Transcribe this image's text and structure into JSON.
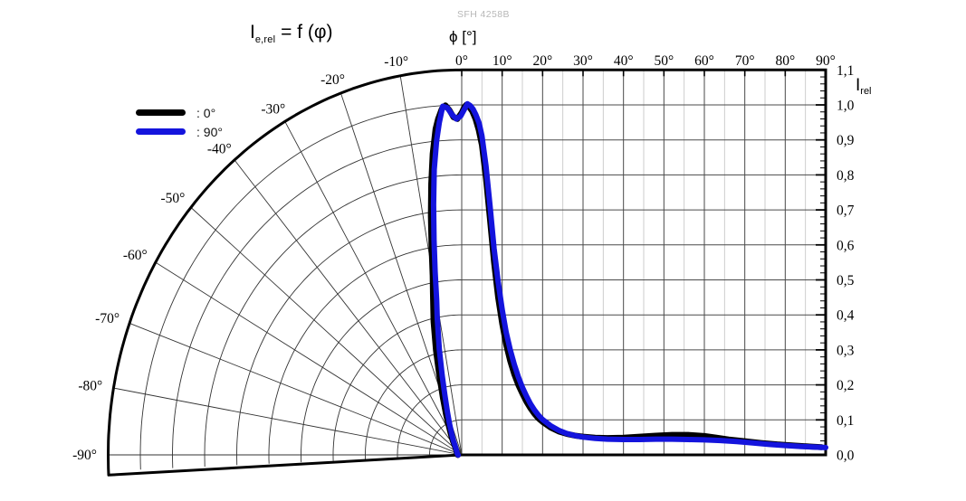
{
  "meta": {
    "part_label": "SFH 4258B"
  },
  "title": {
    "symbol": "I",
    "symbol_sub": "e,rel",
    "rest": " = f (φ)"
  },
  "legend": [
    {
      "label": ": 0°",
      "color": "#000000"
    },
    {
      "label": ": 90°",
      "color": "#1414dd"
    }
  ],
  "chart_data": {
    "type": "line",
    "title": "I_e,rel = f (φ)",
    "subtitle": "SFH 4258B",
    "layout_hint": "left half: polar sector 0°..-93°; right half: cartesian 0°..90°",
    "x_axis": {
      "label": "ϕ [°]",
      "tick_values": [
        0,
        10,
        20,
        30,
        40,
        50,
        60,
        70,
        80,
        90
      ],
      "tick_labels": [
        "0°",
        "10°",
        "20°",
        "30°",
        "40°",
        "50°",
        "60°",
        "70°",
        "80°",
        "90°"
      ],
      "minor_step_deg": 5
    },
    "polar_axis": {
      "tick_values": [
        10,
        20,
        30,
        40,
        50,
        60,
        70,
        80,
        90
      ],
      "tick_labels": [
        "-10°",
        "-20°",
        "-30°",
        "-40°",
        "-50°",
        "-60°",
        "-70°",
        "-80°",
        "-90°"
      ],
      "sector_end_deg": -93.5
    },
    "y_axis": {
      "label": "I",
      "label_sub": "rel",
      "tick_step": 0.1,
      "minor_tick_step": 0.02,
      "tick_labels_bottom_to_top": [
        "0,0",
        "0,1",
        "0,2",
        "0,3",
        "0,4",
        "0,5",
        "0,6",
        "0,7",
        "0,8",
        "0,9",
        "1,0",
        "1,1"
      ],
      "ylim": [
        0.0,
        1.1
      ]
    },
    "series": [
      {
        "name": "0°",
        "color": "#000000",
        "stroke_width": 6.5,
        "points": [
          [
            -93,
            0.012
          ],
          [
            -88,
            0.013
          ],
          [
            -80,
            0.014
          ],
          [
            -72,
            0.016
          ],
          [
            -64,
            0.018
          ],
          [
            -56,
            0.02
          ],
          [
            -50,
            0.023
          ],
          [
            -45,
            0.027
          ],
          [
            -41,
            0.032
          ],
          [
            -38,
            0.038
          ],
          [
            -35,
            0.047
          ],
          [
            -32,
            0.058
          ],
          [
            -29,
            0.072
          ],
          [
            -26,
            0.092
          ],
          [
            -23,
            0.125
          ],
          [
            -20,
            0.17
          ],
          [
            -17,
            0.24
          ],
          [
            -15,
            0.31
          ],
          [
            -13,
            0.39
          ],
          [
            -11,
            0.47
          ],
          [
            -10,
            0.52
          ],
          [
            -9,
            0.6
          ],
          [
            -8,
            0.69
          ],
          [
            -7,
            0.78
          ],
          [
            -6,
            0.865
          ],
          [
            -5,
            0.935
          ],
          [
            -4.4,
            0.962
          ],
          [
            -3.6,
            0.99
          ],
          [
            -2.9,
            1.0
          ],
          [
            -2.2,
            0.985
          ],
          [
            -1.5,
            0.965
          ],
          [
            -0.8,
            0.96
          ],
          [
            0,
            0.978
          ],
          [
            0.6,
            0.993
          ],
          [
            1.1,
            1.0
          ],
          [
            1.8,
            0.995
          ],
          [
            2.6,
            0.982
          ],
          [
            3.4,
            0.96
          ],
          [
            4.2,
            0.928
          ],
          [
            5,
            0.885
          ],
          [
            6,
            0.79
          ],
          [
            7,
            0.67
          ],
          [
            8,
            0.55
          ],
          [
            9,
            0.45
          ],
          [
            10,
            0.375
          ],
          [
            11,
            0.315
          ],
          [
            12,
            0.268
          ],
          [
            13,
            0.23
          ],
          [
            14,
            0.2
          ],
          [
            15,
            0.175
          ],
          [
            16,
            0.152
          ],
          [
            17,
            0.133
          ],
          [
            18,
            0.117
          ],
          [
            19,
            0.104
          ],
          [
            20,
            0.094
          ],
          [
            22,
            0.078
          ],
          [
            24,
            0.067
          ],
          [
            26,
            0.06
          ],
          [
            28,
            0.055
          ],
          [
            30,
            0.052
          ],
          [
            33,
            0.049
          ],
          [
            36,
            0.048
          ],
          [
            40,
            0.049
          ],
          [
            44,
            0.052
          ],
          [
            48,
            0.055
          ],
          [
            52,
            0.057
          ],
          [
            56,
            0.057
          ],
          [
            60,
            0.054
          ],
          [
            63,
            0.049
          ],
          [
            66,
            0.044
          ],
          [
            70,
            0.039
          ],
          [
            74,
            0.034
          ],
          [
            78,
            0.03
          ],
          [
            82,
            0.027
          ],
          [
            86,
            0.024
          ],
          [
            89,
            0.022
          ]
        ]
      },
      {
        "name": "90°",
        "color": "#1414dd",
        "stroke_width": 6,
        "points": [
          [
            -93,
            0.011
          ],
          [
            -88,
            0.012
          ],
          [
            -80,
            0.013
          ],
          [
            -72,
            0.015
          ],
          [
            -64,
            0.017
          ],
          [
            -56,
            0.019
          ],
          [
            -50,
            0.022
          ],
          [
            -45,
            0.025
          ],
          [
            -41,
            0.029
          ],
          [
            -38,
            0.034
          ],
          [
            -35,
            0.041
          ],
          [
            -32,
            0.05
          ],
          [
            -29,
            0.061
          ],
          [
            -26,
            0.076
          ],
          [
            -23,
            0.098
          ],
          [
            -20,
            0.13
          ],
          [
            -17,
            0.18
          ],
          [
            -15,
            0.235
          ],
          [
            -13,
            0.31
          ],
          [
            -11,
            0.4
          ],
          [
            -10,
            0.45
          ],
          [
            -9,
            0.53
          ],
          [
            -8,
            0.62
          ],
          [
            -7,
            0.72
          ],
          [
            -6,
            0.82
          ],
          [
            -5,
            0.9
          ],
          [
            -4.2,
            0.952
          ],
          [
            -3.4,
            0.998
          ],
          [
            -2.6,
            0.993
          ],
          [
            -1.8,
            0.973
          ],
          [
            -1,
            0.96
          ],
          [
            -0.2,
            0.968
          ],
          [
            0.7,
            0.988
          ],
          [
            1.4,
            1.003
          ],
          [
            2.1,
            0.998
          ],
          [
            2.8,
            0.988
          ],
          [
            3.5,
            0.972
          ],
          [
            4.3,
            0.948
          ],
          [
            5,
            0.912
          ],
          [
            6,
            0.825
          ],
          [
            7,
            0.71
          ],
          [
            8,
            0.59
          ],
          [
            9,
            0.495
          ],
          [
            10,
            0.415
          ],
          [
            11,
            0.35
          ],
          [
            12,
            0.3
          ],
          [
            13,
            0.258
          ],
          [
            14,
            0.223
          ],
          [
            15,
            0.193
          ],
          [
            16,
            0.168
          ],
          [
            17,
            0.146
          ],
          [
            18,
            0.128
          ],
          [
            19,
            0.113
          ],
          [
            20,
            0.101
          ],
          [
            22,
            0.083
          ],
          [
            24,
            0.07
          ],
          [
            26,
            0.061
          ],
          [
            28,
            0.055
          ],
          [
            30,
            0.051
          ],
          [
            33,
            0.047
          ],
          [
            36,
            0.045
          ],
          [
            40,
            0.044
          ],
          [
            44,
            0.044
          ],
          [
            48,
            0.045
          ],
          [
            52,
            0.045
          ],
          [
            56,
            0.044
          ],
          [
            60,
            0.043
          ],
          [
            64,
            0.041
          ],
          [
            68,
            0.038
          ],
          [
            72,
            0.034
          ],
          [
            76,
            0.03
          ],
          [
            80,
            0.027
          ],
          [
            84,
            0.024
          ],
          [
            88,
            0.022
          ],
          [
            90,
            0.021
          ]
        ]
      }
    ]
  }
}
